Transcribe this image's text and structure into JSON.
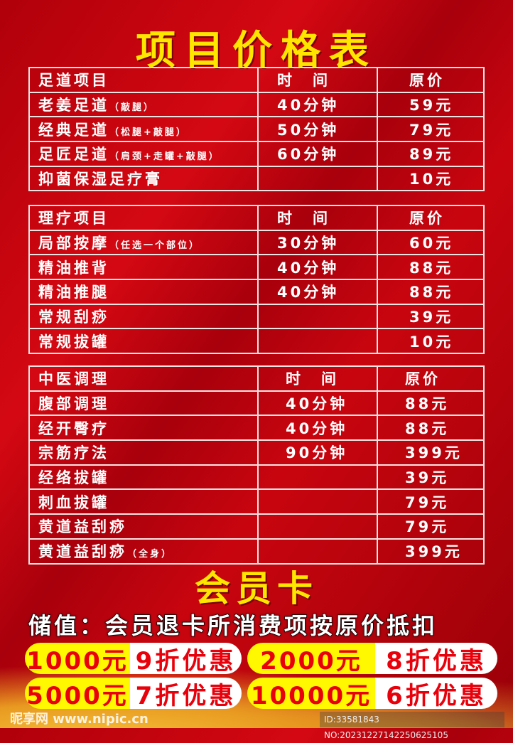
{
  "title": "项目价格表",
  "tables": [
    {
      "header": [
        "足道项目",
        "时　间",
        "原价"
      ],
      "rows": [
        [
          "老姜足道",
          "（敲腿）",
          "40分钟",
          "59元"
        ],
        [
          "经典足道",
          "（松腿+敲腿）",
          "50分钟",
          "79元"
        ],
        [
          "足匠足道",
          "（肩颈+走罐+敲腿）",
          "60分钟",
          "89元"
        ],
        [
          "抑菌保湿足疗膏",
          "",
          "",
          "10元"
        ]
      ]
    },
    {
      "header": [
        "理疗项目",
        "时　间",
        "原价"
      ],
      "rows": [
        [
          "局部按摩",
          "（任选一个部位）",
          "30分钟",
          "60元"
        ],
        [
          "精油推背",
          "",
          "40分钟",
          "88元"
        ],
        [
          "精油推腿",
          "",
          "40分钟",
          "88元"
        ],
        [
          "常规刮痧",
          "",
          "",
          "39元"
        ],
        [
          "常规拔罐",
          "",
          "",
          "10元"
        ]
      ]
    },
    {
      "header": [
        "中医调理",
        "时　间",
        "原价"
      ],
      "rows": [
        [
          "腹部调理",
          "",
          "40分钟",
          "88元"
        ],
        [
          "经开臀疗",
          "",
          "40分钟",
          "88元"
        ],
        [
          "宗筋疗法",
          "",
          "90分钟",
          "399元"
        ],
        [
          "经络拔罐",
          "",
          "",
          "39元"
        ],
        [
          "刺血拔罐",
          "",
          "",
          "79元"
        ],
        [
          "黄道益刮痧",
          "",
          "",
          "79元"
        ],
        [
          "黄道益刮痧",
          "（全身）",
          "",
          "399元"
        ]
      ]
    }
  ],
  "member": {
    "title": "会员卡",
    "notice": "储值：会员退卡所消费项按原价抵扣",
    "tiers": [
      {
        "amount": "1000元",
        "discount": "9折优惠"
      },
      {
        "amount": "2000元",
        "discount": "8折优惠"
      },
      {
        "amount": "5000元",
        "discount": "7折优惠"
      },
      {
        "amount": "10000元",
        "discount": "6折优惠"
      }
    ]
  },
  "watermark": {
    "logo": "昵享网 www.nipic.cn",
    "id": "ID:33581843 NO:20231227142250625105"
  }
}
